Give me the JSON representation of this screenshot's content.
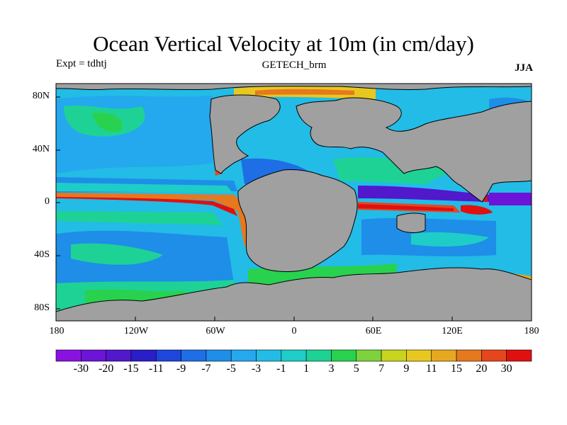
{
  "title": "Ocean Vertical Velocity at 10m (in cm/day)",
  "left_label": "Expt = tdhtj",
  "center_label": "GETECH_brm",
  "right_label": "JJA",
  "lat_ticks": [
    "80N",
    "40N",
    "0",
    "40S",
    "80S"
  ],
  "lon_ticks": [
    "180",
    "120W",
    "60W",
    "0",
    "60E",
    "120E",
    "180"
  ],
  "colorbar": {
    "labels": [
      "-30",
      "-20",
      "-15",
      "-11",
      "-9",
      "-7",
      "-5",
      "-3",
      "-1",
      "1",
      "3",
      "5",
      "7",
      "9",
      "11",
      "15",
      "20",
      "30"
    ],
    "colors": [
      "#8a12e0",
      "#6c14d8",
      "#5218cc",
      "#2a1ec8",
      "#1e46dc",
      "#1e6ee6",
      "#1e8ee8",
      "#24a8ee",
      "#22bce6",
      "#1ecdc8",
      "#1ed296",
      "#28d24e",
      "#7ed23c",
      "#c8d41e",
      "#e8c81e",
      "#e6a81e",
      "#e6781e",
      "#e6461e",
      "#e01010"
    ],
    "land": "#a0a0a0"
  }
}
